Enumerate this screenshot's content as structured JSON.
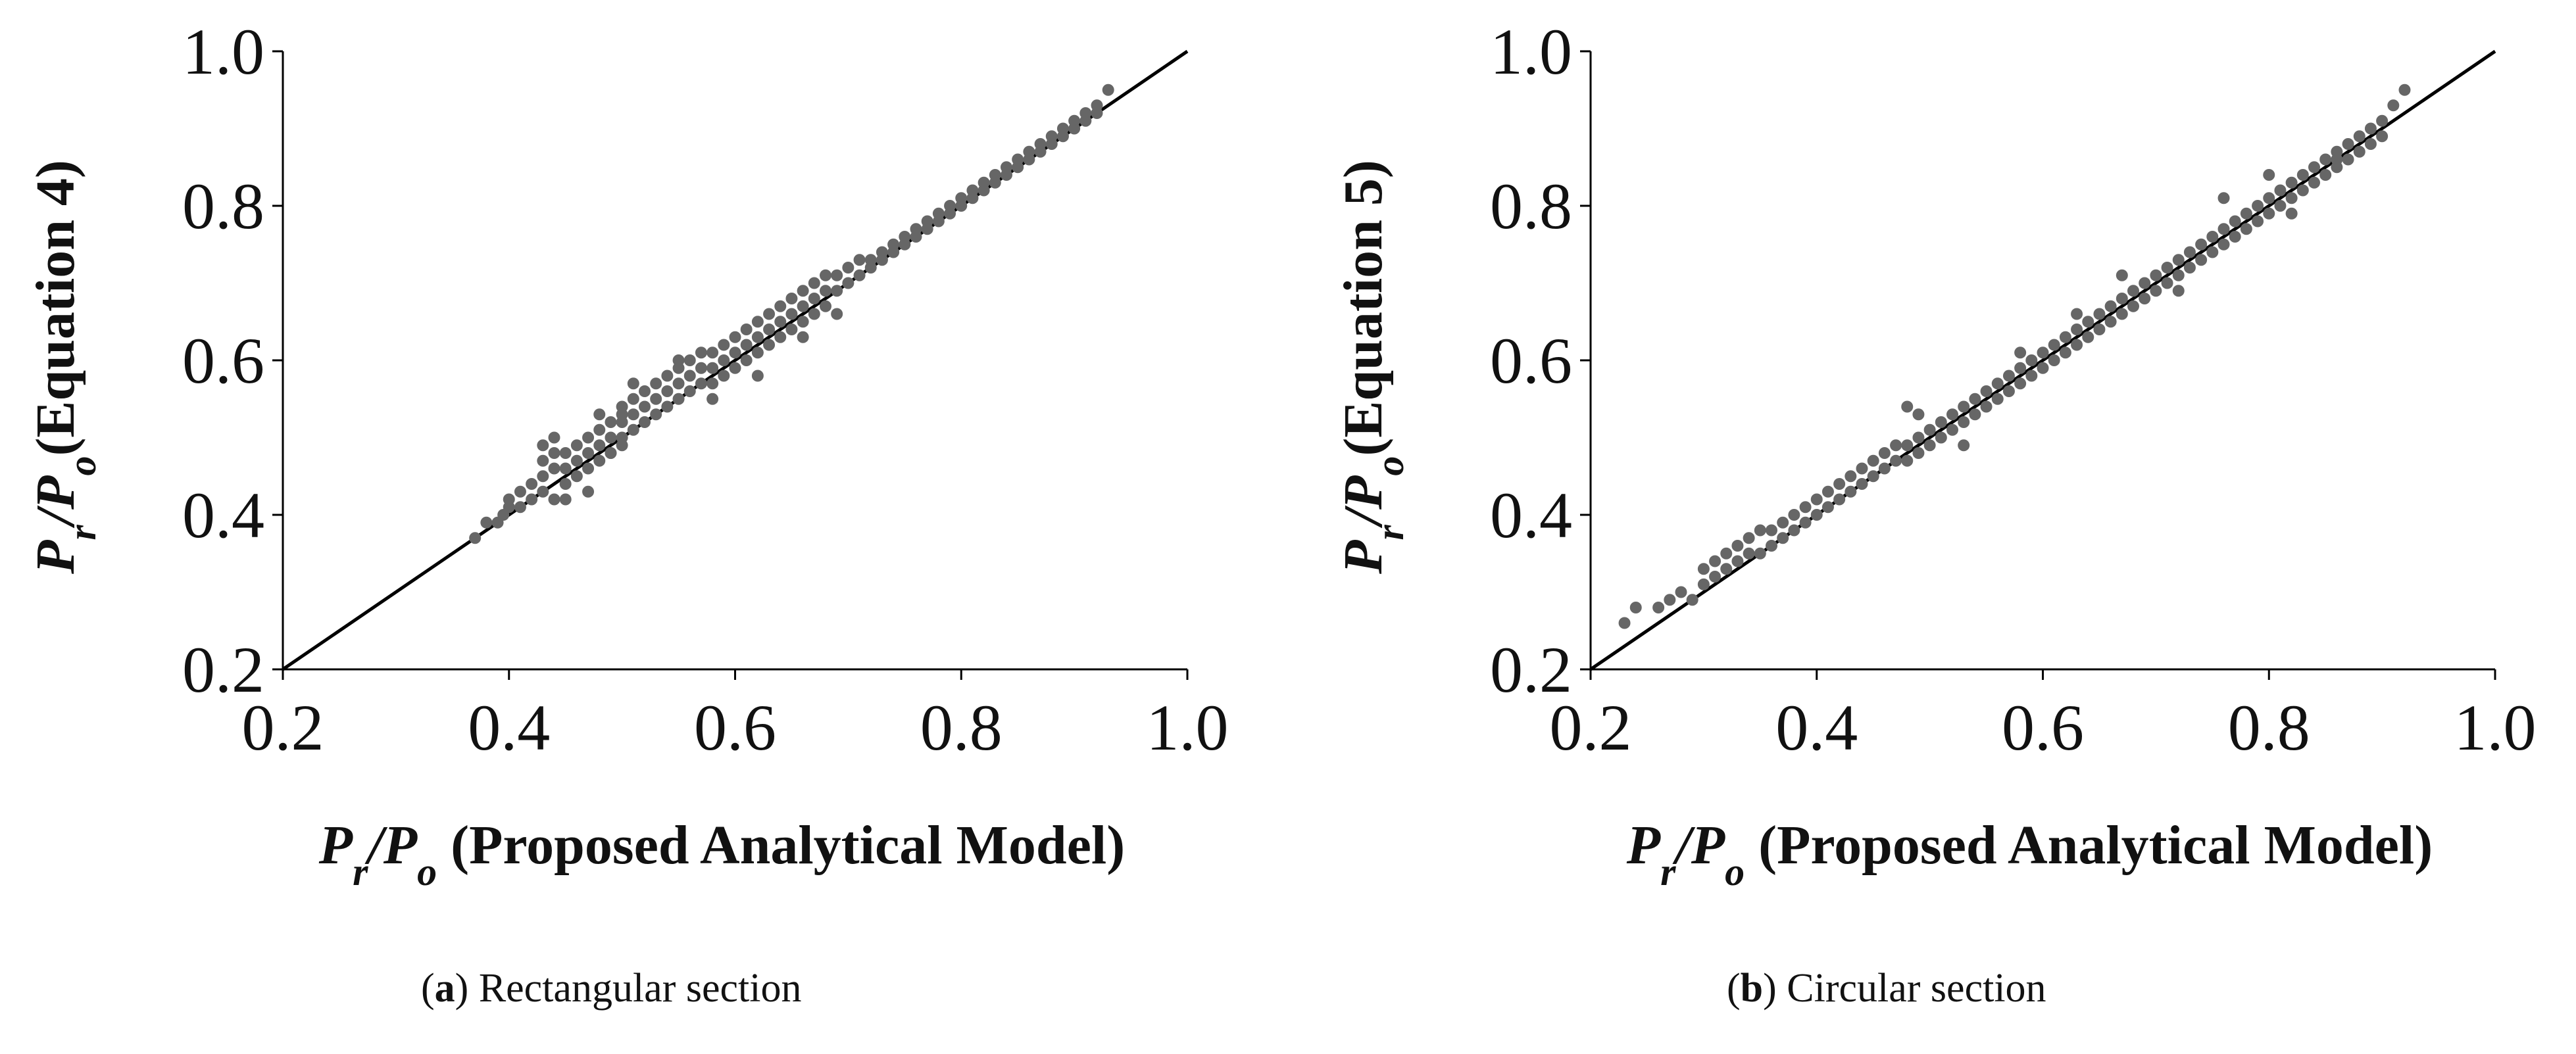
{
  "figure": {
    "panels": [
      {
        "id": "a",
        "caption_letter": "a",
        "caption_text": "Rectangular section",
        "xlabel_var": "P",
        "xlabel_sub_r": "r",
        "xlabel_sep": "/",
        "xlabel_var2": "P",
        "xlabel_sub_o": "o",
        "xlabel_rest": " (Proposed Analytical Model)",
        "ylabel_rest": "(Equation 4)"
      },
      {
        "id": "b",
        "caption_letter": "b",
        "caption_text": "Circular section",
        "xlabel_var": "P",
        "xlabel_sub_r": "r",
        "xlabel_sep": "/",
        "xlabel_var2": "P",
        "xlabel_sub_o": "o",
        "xlabel_rest": " (Proposed Analytical Model)",
        "ylabel_rest": "(Equation 5)"
      }
    ]
  },
  "colors": {
    "marker": "#666666",
    "line": "#000000",
    "axis": "#000000"
  },
  "chart_data": [
    {
      "type": "scatter",
      "title": "(a) Rectangular section",
      "xlabel": "Pr/Po (Proposed Analytical Model)",
      "ylabel": "Pr/Po(Equation 4)",
      "xlim": [
        0.2,
        1.0
      ],
      "ylim": [
        0.2,
        1.0
      ],
      "xticks": [
        "0.2",
        "0.4",
        "0.6",
        "0.8",
        "1.0"
      ],
      "yticks": [
        "0.2",
        "0.4",
        "0.6",
        "0.8",
        "1.0"
      ],
      "reference_line": {
        "x": [
          0.2,
          1.0
        ],
        "y": [
          0.2,
          1.0
        ]
      },
      "series": [
        {
          "name": "Rectangular",
          "x": [
            0.37,
            0.38,
            0.39,
            0.395,
            0.4,
            0.4,
            0.41,
            0.41,
            0.42,
            0.42,
            0.43,
            0.43,
            0.43,
            0.44,
            0.44,
            0.44,
            0.45,
            0.45,
            0.45,
            0.46,
            0.46,
            0.46,
            0.47,
            0.47,
            0.47,
            0.48,
            0.48,
            0.48,
            0.48,
            0.49,
            0.49,
            0.49,
            0.5,
            0.5,
            0.5,
            0.5,
            0.51,
            0.51,
            0.51,
            0.52,
            0.52,
            0.52,
            0.53,
            0.53,
            0.53,
            0.54,
            0.54,
            0.54,
            0.55,
            0.55,
            0.55,
            0.56,
            0.56,
            0.56,
            0.57,
            0.57,
            0.57,
            0.58,
            0.58,
            0.58,
            0.59,
            0.59,
            0.59,
            0.6,
            0.6,
            0.6,
            0.61,
            0.61,
            0.61,
            0.62,
            0.62,
            0.62,
            0.63,
            0.63,
            0.63,
            0.64,
            0.64,
            0.64,
            0.65,
            0.65,
            0.65,
            0.66,
            0.66,
            0.66,
            0.67,
            0.67,
            0.67,
            0.68,
            0.68,
            0.68,
            0.69,
            0.69,
            0.7,
            0.7,
            0.71,
            0.71,
            0.72,
            0.72,
            0.73,
            0.73,
            0.74,
            0.74,
            0.75,
            0.75,
            0.76,
            0.76,
            0.77,
            0.77,
            0.78,
            0.78,
            0.79,
            0.79,
            0.8,
            0.8,
            0.81,
            0.81,
            0.82,
            0.82,
            0.83,
            0.83,
            0.84,
            0.84,
            0.85,
            0.85,
            0.86,
            0.86,
            0.87,
            0.87,
            0.88,
            0.88,
            0.89,
            0.89,
            0.9,
            0.9,
            0.91,
            0.91,
            0.92,
            0.92,
            0.93,
            0.43,
            0.44,
            0.47,
            0.5,
            0.51,
            0.55,
            0.45,
            0.49,
            0.58,
            0.62,
            0.66,
            0.69
          ],
          "y": [
            0.37,
            0.39,
            0.39,
            0.4,
            0.41,
            0.42,
            0.41,
            0.43,
            0.42,
            0.44,
            0.43,
            0.45,
            0.47,
            0.42,
            0.46,
            0.48,
            0.44,
            0.46,
            0.48,
            0.47,
            0.49,
            0.45,
            0.48,
            0.5,
            0.46,
            0.49,
            0.51,
            0.47,
            0.53,
            0.5,
            0.52,
            0.48,
            0.5,
            0.52,
            0.54,
            0.49,
            0.51,
            0.53,
            0.55,
            0.52,
            0.54,
            0.56,
            0.53,
            0.55,
            0.57,
            0.54,
            0.56,
            0.58,
            0.55,
            0.57,
            0.59,
            0.56,
            0.58,
            0.6,
            0.57,
            0.59,
            0.61,
            0.57,
            0.59,
            0.61,
            0.58,
            0.6,
            0.62,
            0.59,
            0.61,
            0.63,
            0.6,
            0.62,
            0.64,
            0.61,
            0.63,
            0.65,
            0.62,
            0.64,
            0.66,
            0.63,
            0.65,
            0.67,
            0.64,
            0.66,
            0.68,
            0.65,
            0.67,
            0.69,
            0.66,
            0.68,
            0.7,
            0.67,
            0.69,
            0.71,
            0.69,
            0.71,
            0.7,
            0.72,
            0.71,
            0.73,
            0.72,
            0.73,
            0.73,
            0.74,
            0.74,
            0.75,
            0.75,
            0.76,
            0.76,
            0.77,
            0.77,
            0.78,
            0.78,
            0.79,
            0.79,
            0.8,
            0.8,
            0.81,
            0.81,
            0.82,
            0.82,
            0.83,
            0.83,
            0.84,
            0.84,
            0.85,
            0.85,
            0.86,
            0.86,
            0.87,
            0.87,
            0.88,
            0.88,
            0.89,
            0.89,
            0.9,
            0.9,
            0.91,
            0.91,
            0.92,
            0.92,
            0.93,
            0.95,
            0.49,
            0.5,
            0.43,
            0.53,
            0.57,
            0.6,
            0.42,
            0.48,
            0.55,
            0.58,
            0.63,
            0.66
          ]
        }
      ]
    },
    {
      "type": "scatter",
      "title": "(b) Circular section",
      "xlabel": "Pr/Po (Proposed Analytical Model)",
      "ylabel": "Pr/Po(Equation 5)",
      "xlim": [
        0.2,
        1.0
      ],
      "ylim": [
        0.2,
        1.0
      ],
      "xticks": [
        "0.2",
        "0.4",
        "0.6",
        "0.8",
        "1.0"
      ],
      "yticks": [
        "0.2",
        "0.4",
        "0.6",
        "0.8",
        "1.0"
      ],
      "reference_line": {
        "x": [
          0.2,
          1.0
        ],
        "y": [
          0.2,
          1.0
        ]
      },
      "series": [
        {
          "name": "Circular",
          "x": [
            0.23,
            0.24,
            0.26,
            0.27,
            0.28,
            0.29,
            0.3,
            0.3,
            0.31,
            0.31,
            0.32,
            0.32,
            0.33,
            0.33,
            0.34,
            0.34,
            0.35,
            0.35,
            0.36,
            0.36,
            0.37,
            0.37,
            0.38,
            0.38,
            0.39,
            0.39,
            0.4,
            0.4,
            0.41,
            0.41,
            0.42,
            0.42,
            0.43,
            0.43,
            0.44,
            0.44,
            0.45,
            0.45,
            0.46,
            0.46,
            0.47,
            0.47,
            0.48,
            0.48,
            0.49,
            0.49,
            0.5,
            0.5,
            0.51,
            0.51,
            0.52,
            0.52,
            0.53,
            0.53,
            0.54,
            0.54,
            0.55,
            0.55,
            0.56,
            0.56,
            0.57,
            0.57,
            0.58,
            0.58,
            0.59,
            0.59,
            0.6,
            0.6,
            0.61,
            0.61,
            0.62,
            0.62,
            0.63,
            0.63,
            0.64,
            0.64,
            0.65,
            0.65,
            0.66,
            0.66,
            0.67,
            0.67,
            0.68,
            0.68,
            0.69,
            0.69,
            0.7,
            0.7,
            0.71,
            0.71,
            0.72,
            0.72,
            0.73,
            0.73,
            0.74,
            0.74,
            0.75,
            0.75,
            0.76,
            0.76,
            0.77,
            0.77,
            0.78,
            0.78,
            0.79,
            0.79,
            0.8,
            0.8,
            0.81,
            0.81,
            0.82,
            0.82,
            0.83,
            0.83,
            0.84,
            0.84,
            0.85,
            0.85,
            0.86,
            0.86,
            0.87,
            0.87,
            0.88,
            0.88,
            0.89,
            0.89,
            0.9,
            0.9,
            0.91,
            0.92,
            0.48,
            0.49,
            0.53,
            0.58,
            0.63,
            0.67,
            0.72,
            0.76,
            0.8,
            0.82,
            0.86
          ],
          "y": [
            0.26,
            0.28,
            0.28,
            0.29,
            0.3,
            0.29,
            0.31,
            0.33,
            0.32,
            0.34,
            0.33,
            0.35,
            0.34,
            0.36,
            0.35,
            0.37,
            0.35,
            0.38,
            0.36,
            0.38,
            0.37,
            0.39,
            0.38,
            0.4,
            0.39,
            0.41,
            0.4,
            0.42,
            0.41,
            0.43,
            0.42,
            0.44,
            0.43,
            0.45,
            0.44,
            0.46,
            0.45,
            0.47,
            0.46,
            0.48,
            0.47,
            0.49,
            0.47,
            0.49,
            0.48,
            0.5,
            0.49,
            0.51,
            0.5,
            0.52,
            0.51,
            0.53,
            0.52,
            0.54,
            0.53,
            0.55,
            0.54,
            0.56,
            0.55,
            0.57,
            0.56,
            0.58,
            0.57,
            0.59,
            0.58,
            0.6,
            0.59,
            0.61,
            0.6,
            0.62,
            0.61,
            0.63,
            0.62,
            0.64,
            0.63,
            0.65,
            0.64,
            0.66,
            0.65,
            0.67,
            0.66,
            0.68,
            0.67,
            0.69,
            0.68,
            0.7,
            0.69,
            0.71,
            0.7,
            0.72,
            0.71,
            0.73,
            0.72,
            0.74,
            0.73,
            0.75,
            0.74,
            0.76,
            0.75,
            0.77,
            0.76,
            0.78,
            0.77,
            0.79,
            0.78,
            0.8,
            0.79,
            0.81,
            0.8,
            0.82,
            0.81,
            0.83,
            0.82,
            0.84,
            0.83,
            0.85,
            0.84,
            0.86,
            0.85,
            0.87,
            0.86,
            0.88,
            0.87,
            0.89,
            0.88,
            0.9,
            0.89,
            0.91,
            0.93,
            0.95,
            0.54,
            0.53,
            0.49,
            0.61,
            0.66,
            0.71,
            0.69,
            0.81,
            0.84,
            0.79,
            0.86
          ]
        }
      ]
    }
  ]
}
